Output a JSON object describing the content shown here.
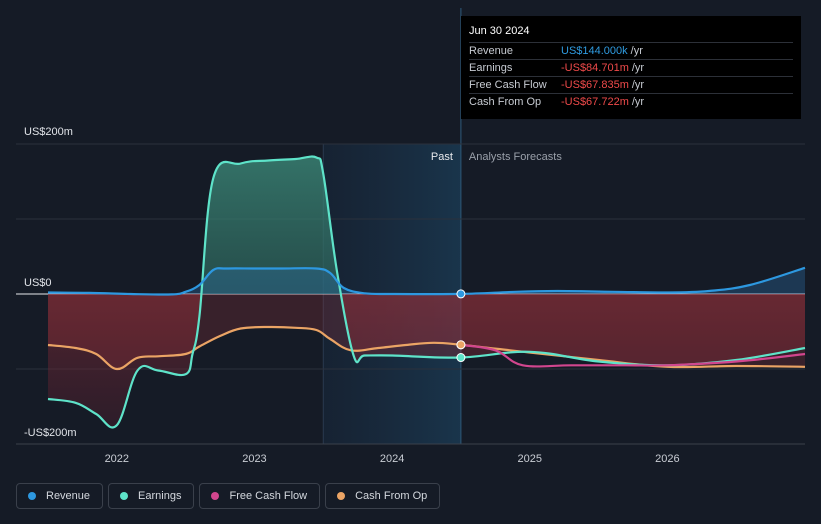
{
  "tooltip": {
    "date": "Jun 30 2024",
    "rows": [
      {
        "label": "Revenue",
        "value": "US$144.000k",
        "unit": "/yr",
        "color": "#2f9be0"
      },
      {
        "label": "Earnings",
        "value": "-US$84.701m",
        "unit": "/yr",
        "color": "#ef4a4a"
      },
      {
        "label": "Free Cash Flow",
        "value": "-US$67.835m",
        "unit": "/yr",
        "color": "#ef4a4a"
      },
      {
        "label": "Cash From Op",
        "value": "-US$67.722m",
        "unit": "/yr",
        "color": "#ef4a4a"
      }
    ]
  },
  "legend": [
    {
      "label": "Revenue",
      "color": "#2d98e0"
    },
    {
      "label": "Earnings",
      "color": "#5ee3c9"
    },
    {
      "label": "Free Cash Flow",
      "color": "#d1468e"
    },
    {
      "label": "Cash From Op",
      "color": "#eba465"
    }
  ],
  "chart_data": {
    "type": "line",
    "title": "",
    "xlabel": "",
    "ylabel": "",
    "xlim": [
      2021.5,
      2027.0
    ],
    "ylim": [
      -200,
      200
    ],
    "x_ticks": [
      2022,
      2023,
      2024,
      2025,
      2026
    ],
    "x_tick_labels": [
      "2022",
      "2023",
      "2024",
      "2025",
      "2026"
    ],
    "y_tick_labels": [
      {
        "value": 200,
        "label": "US$200m"
      },
      {
        "value": 0,
        "label": "US$0"
      },
      {
        "value": -200,
        "label": "-US$200m"
      }
    ],
    "past_label": "Past",
    "forecast_label": "Analysts Forecasts",
    "forecast_start": 2023.5,
    "divider_x": 2024.5,
    "highlight_date_x": 2024.5,
    "grid": true,
    "legend_position": "bottom-left",
    "series": [
      {
        "name": "Revenue",
        "color": "#2d98e0",
        "x": [
          2021.5,
          2021.8,
          2022.1,
          2022.4,
          2022.5,
          2022.6,
          2022.7,
          2022.8,
          2023.0,
          2023.2,
          2023.45,
          2023.55,
          2023.65,
          2023.8,
          2024.0,
          2024.5,
          2024.9,
          2025.2,
          2025.6,
          2026.0,
          2026.3,
          2026.6,
          2027.0
        ],
        "y": [
          2,
          1.5,
          0,
          -0.5,
          3,
          12,
          32,
          34,
          34,
          34,
          34,
          28,
          8,
          1,
          0,
          0.1,
          3,
          4,
          3,
          2,
          4,
          12,
          35
        ]
      },
      {
        "name": "Earnings",
        "color": "#5ee3c9",
        "x": [
          2021.5,
          2021.7,
          2021.85,
          2022.0,
          2022.15,
          2022.3,
          2022.5,
          2022.55,
          2022.6,
          2022.7,
          2022.9,
          2023.1,
          2023.3,
          2023.45,
          2023.5,
          2023.6,
          2023.72,
          2023.8,
          2024.0,
          2024.5,
          2025.0,
          2025.5,
          2026.0,
          2026.5,
          2027.0
        ],
        "y": [
          -140,
          -145,
          -160,
          -175,
          -102,
          -102,
          -107,
          -80,
          -30,
          154,
          174,
          178,
          180,
          182,
          160,
          30,
          -82,
          -82,
          -82,
          -84.7,
          -77,
          -90,
          -95,
          -88,
          -72
        ]
      },
      {
        "name": "Free Cash Flow",
        "color": "#d1468e",
        "x": [
          2024.5,
          2024.75,
          2024.95,
          2025.3,
          2025.7,
          2026.0,
          2026.5,
          2027.0
        ],
        "y": [
          -67.8,
          -75,
          -95,
          -95,
          -95,
          -95,
          -90,
          -80
        ]
      },
      {
        "name": "Cash From Op",
        "color": "#eba465",
        "x": [
          2021.5,
          2021.7,
          2021.85,
          2022.0,
          2022.15,
          2022.3,
          2022.5,
          2022.6,
          2022.75,
          2022.9,
          2023.1,
          2023.3,
          2023.45,
          2023.55,
          2023.7,
          2023.9,
          2024.1,
          2024.3,
          2024.5,
          2025.0,
          2025.5,
          2026.0,
          2026.5,
          2027.0
        ],
        "y": [
          -68,
          -72,
          -80,
          -100,
          -85,
          -83,
          -80,
          -70,
          -56,
          -46,
          -44,
          -45,
          -48,
          -60,
          -75,
          -72,
          -68,
          -65,
          -67.7,
          -78,
          -88,
          -97,
          -96,
          -97
        ]
      }
    ]
  }
}
